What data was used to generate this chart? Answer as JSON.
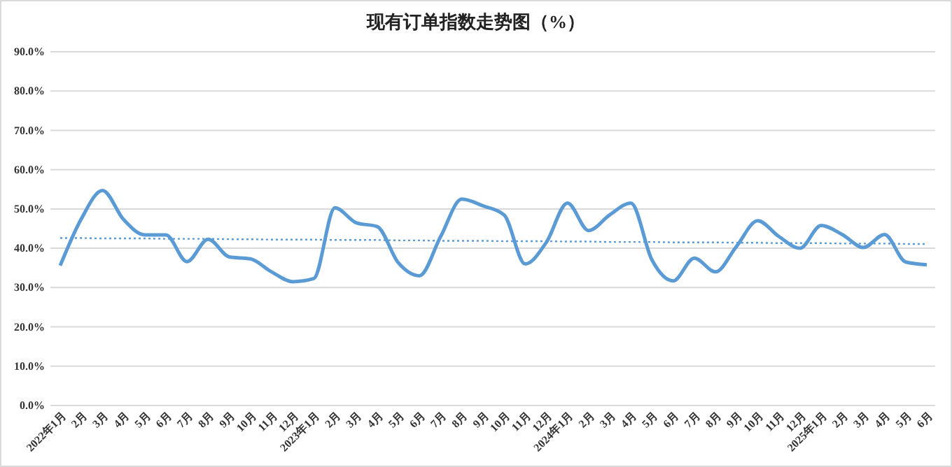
{
  "chart_data": {
    "type": "line",
    "title": "现有订单指数走势图（%）",
    "categories": [
      "2022年1月",
      "2月",
      "3月",
      "4月",
      "5月",
      "6月",
      "7月",
      "8月",
      "9月",
      "10月",
      "11月",
      "12月",
      "2023年1月",
      "2月",
      "3月",
      "4月",
      "5月",
      "6月",
      "7月",
      "8月",
      "9月",
      "10月",
      "11月",
      "12月",
      "2024年1月",
      "2月",
      "3月",
      "4月",
      "5月",
      "6月",
      "7月",
      "8月",
      "9月",
      "10月",
      "11月",
      "12月",
      "2025年1月",
      "2月",
      "3月",
      "4月",
      "5月",
      "6月"
    ],
    "series": [
      {
        "color": "#5b9bd5",
        "line_style": "solid",
        "values": [
          35.6,
          47.5,
          54.7,
          47.3,
          43.4,
          43.4,
          36.6,
          42.3,
          37.8,
          37.3,
          34,
          31.5,
          32.3,
          50.3,
          46.5,
          45.5,
          36.3,
          33,
          43,
          52.5,
          50.8,
          48.5,
          36,
          41.5,
          51.5,
          44.5,
          48.5,
          51.5,
          37,
          31.7,
          37.5,
          34,
          40.5,
          47,
          43,
          40,
          45.8,
          43.5,
          40.2,
          43.5,
          36.5,
          35.8
        ]
      },
      {
        "color": "#5b9bd5",
        "line_style": "dotted",
        "values": [
          42.6,
          42.6,
          42.5,
          42.5,
          42.5,
          42.4,
          42.4,
          42.4,
          42.3,
          42.3,
          42.2,
          42.2,
          42.2,
          42.1,
          42.1,
          42.1,
          42.0,
          42.0,
          41.9,
          41.9,
          41.9,
          41.8,
          41.8,
          41.8,
          41.7,
          41.7,
          41.6,
          41.6,
          41.6,
          41.5,
          41.5,
          41.5,
          41.4,
          41.4,
          41.3,
          41.3,
          41.3,
          41.2,
          41.2,
          41.2,
          41.1,
          41.1
        ]
      }
    ],
    "ylim": [
      0,
      90
    ],
    "yticks": [
      {
        "value": 0,
        "label": "0.0%"
      },
      {
        "value": 10,
        "label": "10.0%"
      },
      {
        "value": 20,
        "label": "20.0%"
      },
      {
        "value": 30,
        "label": "30.0%"
      },
      {
        "value": 40,
        "label": "40.0%"
      },
      {
        "value": 50,
        "label": "50.0%"
      },
      {
        "value": 60,
        "label": "60.0%"
      },
      {
        "value": 70,
        "label": "70.0%"
      },
      {
        "value": 80,
        "label": "80.0%"
      },
      {
        "value": 90,
        "label": "90.0%"
      }
    ],
    "grid": "y",
    "marker": "none"
  }
}
